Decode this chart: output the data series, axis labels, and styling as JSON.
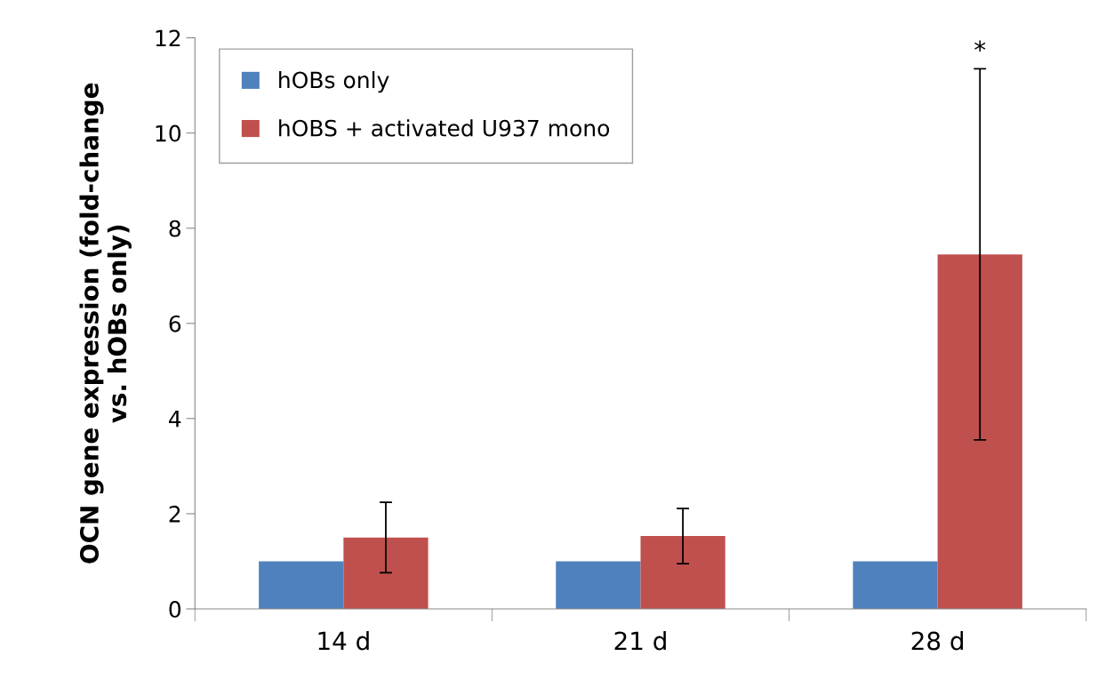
{
  "chart_data": {
    "type": "bar",
    "ylabel": "OCN gene expression (fold-change\nvs. hOBs only)",
    "categories": [
      "14 d",
      "21 d",
      "28 d"
    ],
    "series": [
      {
        "name": "hOBs only",
        "color": "#4f81bd",
        "values": [
          1,
          1,
          1
        ]
      },
      {
        "name": "hOBS + activated U937 mono",
        "color": "#c0504d",
        "values": [
          1.5,
          1.53,
          7.45
        ],
        "errors": [
          0.74,
          0.58,
          3.9
        ]
      }
    ],
    "ylim": [
      0,
      12
    ],
    "yticks": [
      0,
      2,
      4,
      6,
      8,
      10,
      12
    ],
    "grid": false,
    "legend": "top left",
    "annotations": [
      "*"
    ]
  }
}
